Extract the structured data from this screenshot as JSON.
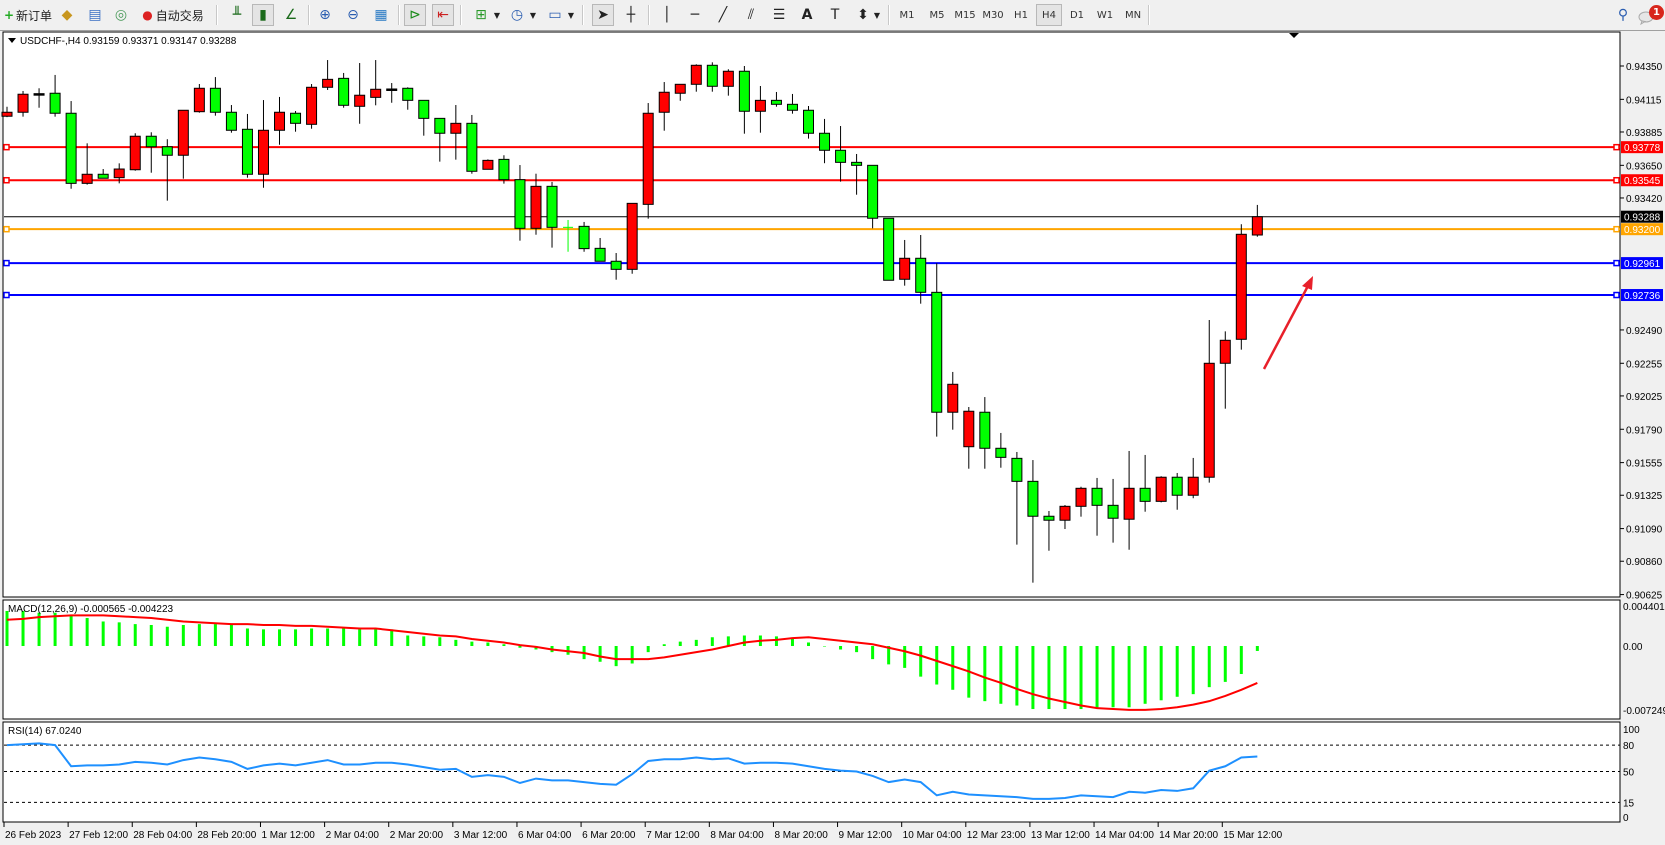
{
  "toolbar": {
    "new_order": "新订单",
    "auto_trading": "自动交易",
    "timeframes": [
      "M1",
      "M5",
      "M15",
      "M30",
      "H1",
      "H4",
      "D1",
      "W1",
      "MN"
    ],
    "active_timeframe": "H4",
    "notification_count": "1"
  },
  "chart": {
    "header": "USDCHF-,H4  0.93159 0.93371 0.93147 0.93288",
    "up_color": "#ff0000",
    "down_color": "#00ff00"
  },
  "chart_data": [
    {
      "type": "candlestick",
      "symbol": "USDCHF-",
      "timeframe": "H4",
      "ylim": [
        0.90625,
        0.9435
      ],
      "price_ticks": [
        "0.94350",
        "0.94115",
        "0.93885",
        "0.93650",
        "0.93420",
        "0.92490",
        "0.92255",
        "0.92025",
        "0.91790",
        "0.91555",
        "0.91325",
        "0.91090",
        "0.90860",
        "0.90625"
      ],
      "time_labels": [
        "26 Feb 2023",
        "27 Feb 12:00",
        "28 Feb 04:00",
        "28 Feb 20:00",
        "1 Mar 12:00",
        "2 Mar 04:00",
        "2 Mar 20:00",
        "3 Mar 12:00",
        "6 Mar 04:00",
        "6 Mar 20:00",
        "7 Mar 12:00",
        "8 Mar 04:00",
        "8 Mar 20:00",
        "9 Mar 12:00",
        "10 Mar 04:00",
        "12 Mar 23:00",
        "13 Mar 12:00",
        "14 Mar 04:00",
        "14 Mar 20:00",
        "15 Mar 12:00"
      ],
      "ohlc": [
        [
          0.93996,
          0.94063,
          0.9399,
          0.94024
        ],
        [
          0.94024,
          0.94174,
          0.93993,
          0.94151
        ],
        [
          0.94153,
          0.94193,
          0.94056,
          0.94155
        ],
        [
          0.94158,
          0.94287,
          0.93993,
          0.94017
        ],
        [
          0.94017,
          0.94103,
          0.93485,
          0.93523
        ],
        [
          0.93523,
          0.93805,
          0.93514,
          0.93587
        ],
        [
          0.93587,
          0.93624,
          0.93559,
          0.93559
        ],
        [
          0.93563,
          0.93664,
          0.93523,
          0.93624
        ],
        [
          0.93619,
          0.93876,
          0.93612,
          0.93855
        ],
        [
          0.93855,
          0.93883,
          0.93598,
          0.93781
        ],
        [
          0.93781,
          0.93834,
          0.93401,
          0.93721
        ],
        [
          0.93721,
          0.94038,
          0.93556,
          0.94038
        ],
        [
          0.94028,
          0.94223,
          0.94021,
          0.94193
        ],
        [
          0.94193,
          0.94272,
          0.94,
          0.94024
        ],
        [
          0.94024,
          0.94075,
          0.9388,
          0.93897
        ],
        [
          0.93904,
          0.94012,
          0.93563,
          0.93587
        ],
        [
          0.93587,
          0.9411,
          0.93492,
          0.93897
        ],
        [
          0.93897,
          0.94132,
          0.93795,
          0.94024
        ],
        [
          0.94017,
          0.94033,
          0.93887,
          0.93946
        ],
        [
          0.93939,
          0.94223,
          0.93908,
          0.942
        ],
        [
          0.942,
          0.94392,
          0.94181,
          0.94256
        ],
        [
          0.94263,
          0.94301,
          0.94056,
          0.94073
        ],
        [
          0.94066,
          0.94371,
          0.93943,
          0.94144
        ],
        [
          0.94129,
          0.94392,
          0.94073,
          0.94186
        ],
        [
          0.94186,
          0.9423,
          0.94091,
          0.94188
        ],
        [
          0.94193,
          0.942,
          0.94042,
          0.94108
        ],
        [
          0.94108,
          0.94108,
          0.93859,
          0.93981
        ],
        [
          0.93981,
          0.93981,
          0.93676,
          0.93876
        ],
        [
          0.93876,
          0.94075,
          0.9369,
          0.93946
        ],
        [
          0.93946,
          0.94005,
          0.93591,
          0.93608
        ],
        [
          0.93622,
          0.93692,
          0.93622,
          0.93685
        ],
        [
          0.93692,
          0.93721,
          0.93521,
          0.93549
        ],
        [
          0.93549,
          0.93652,
          0.93119,
          0.93206
        ],
        [
          0.93206,
          0.93591,
          0.93161,
          0.93502
        ],
        [
          0.93502,
          0.93533,
          0.9307,
          0.93213
        ],
        [
          0.93213,
          0.93265,
          0.93041,
          0.93213
        ],
        [
          0.9322,
          0.93251,
          0.93041,
          0.93063
        ],
        [
          0.93065,
          0.93138,
          0.92974,
          0.92974
        ],
        [
          0.92974,
          0.93032,
          0.92844,
          0.92917
        ],
        [
          0.92917,
          0.93382,
          0.92886,
          0.93382
        ],
        [
          0.93375,
          0.94089,
          0.93274,
          0.94017
        ],
        [
          0.94024,
          0.94237,
          0.93894,
          0.94165
        ],
        [
          0.94158,
          0.94221,
          0.94105,
          0.94221
        ],
        [
          0.94221,
          0.94362,
          0.94169,
          0.94355
        ],
        [
          0.94355,
          0.94376,
          0.94169,
          0.94207
        ],
        [
          0.94207,
          0.94327,
          0.94141,
          0.94313
        ],
        [
          0.94313,
          0.9435,
          0.93873,
          0.94031
        ],
        [
          0.94031,
          0.94209,
          0.9388,
          0.94108
        ],
        [
          0.94108,
          0.94167,
          0.94063,
          0.9408
        ],
        [
          0.9408,
          0.94153,
          0.94014,
          0.94038
        ],
        [
          0.94038,
          0.94068,
          0.93838,
          0.93876
        ],
        [
          0.93876,
          0.93977,
          0.93665,
          0.93756
        ],
        [
          0.93756,
          0.93927,
          0.93535,
          0.93671
        ],
        [
          0.93671,
          0.9373,
          0.93443,
          0.9365
        ],
        [
          0.9365,
          0.9365,
          0.93206,
          0.93277
        ],
        [
          0.93277,
          0.93277,
          0.9284,
          0.9284
        ],
        [
          0.92847,
          0.93124,
          0.92802,
          0.92995
        ],
        [
          0.92995,
          0.93159,
          0.92675,
          0.92755
        ],
        [
          0.92755,
          0.9296,
          0.91738,
          0.9191
        ],
        [
          0.9191,
          0.92194,
          0.91787,
          0.92107
        ],
        [
          0.91667,
          0.91947,
          0.91512,
          0.91917
        ],
        [
          0.9191,
          0.92017,
          0.91512,
          0.91656
        ],
        [
          0.91656,
          0.91764,
          0.91519,
          0.91592
        ],
        [
          0.91585,
          0.9163,
          0.90977,
          0.91423
        ],
        [
          0.91423,
          0.91573,
          0.90709,
          0.91177
        ],
        [
          0.91177,
          0.91214,
          0.90934,
          0.91149
        ],
        [
          0.91149,
          0.91256,
          0.91087,
          0.91247
        ],
        [
          0.91247,
          0.91385,
          0.91174,
          0.91374
        ],
        [
          0.91374,
          0.91447,
          0.9104,
          0.91254
        ],
        [
          0.91254,
          0.9144,
          0.90991,
          0.91163
        ],
        [
          0.91156,
          0.91637,
          0.90941,
          0.91374
        ],
        [
          0.91374,
          0.91609,
          0.91209,
          0.91282
        ],
        [
          0.91282,
          0.91459,
          0.91275,
          0.91452
        ],
        [
          0.91452,
          0.91482,
          0.91223,
          0.91325
        ],
        [
          0.91325,
          0.91588,
          0.91304,
          0.91452
        ],
        [
          0.91452,
          0.9256,
          0.91414,
          0.92255
        ],
        [
          0.92255,
          0.9248,
          0.91935,
          0.92417
        ],
        [
          0.92424,
          0.93235,
          0.92351,
          0.93164
        ],
        [
          0.93159,
          0.93371,
          0.93147,
          0.93288
        ]
      ],
      "levels": [
        {
          "price": "0.93778",
          "color": "#ff0000"
        },
        {
          "price": "0.93545",
          "color": "#ff0000"
        },
        {
          "price": "0.93288",
          "color": "#000000"
        },
        {
          "price": "0.93200",
          "color": "#ffa500"
        },
        {
          "price": "0.92961",
          "color": "#0000ff"
        },
        {
          "price": "0.92736",
          "color": "#0000ff"
        }
      ],
      "annotation": {
        "type": "arrow",
        "color": "#e8202a",
        "direction": "up-right"
      }
    },
    {
      "type": "macd",
      "label": "MACD(12,26,9) -0.000565 -0.004223",
      "ylim": [
        -0.007249,
        0.004401
      ],
      "ticks": [
        "0.004401",
        "0.00",
        "-0.007249"
      ],
      "histogram_color": "#00ff00",
      "signal_color": "#ff0000",
      "histogram": [
        0.004,
        0.004,
        0.0038,
        0.0038,
        0.0036,
        0.0032,
        0.0028,
        0.0027,
        0.0025,
        0.0024,
        0.0022,
        0.0024,
        0.0025,
        0.0025,
        0.0024,
        0.002,
        0.0019,
        0.0019,
        0.0019,
        0.002,
        0.002,
        0.002,
        0.0019,
        0.0019,
        0.0019,
        0.0012,
        0.0011,
        0.001,
        0.0007,
        0.0005,
        0.0004,
        0.0002,
        -0.0002,
        -0.0004,
        -0.0007,
        -0.001,
        -0.0015,
        -0.0018,
        -0.0023,
        -0.002,
        -0.0007,
        0.0002,
        0.0005,
        0.0007,
        0.001,
        0.0011,
        0.0012,
        0.0012,
        0.0011,
        0.0008,
        0.0004,
        0.0,
        -0.0004,
        -0.0007,
        -0.0015,
        -0.0021,
        -0.0025,
        -0.0035,
        -0.0044,
        -0.005,
        -0.0059,
        -0.0063,
        -0.0066,
        -0.0068,
        -0.0072,
        -0.0072,
        -0.0072,
        -0.0072,
        -0.0071,
        -0.007,
        -0.007,
        -0.0066,
        -0.0062,
        -0.0058,
        -0.0055,
        -0.0047,
        -0.0041,
        -0.0032,
        -0.000565
      ],
      "signal": [
        0.003,
        0.0031,
        0.0033,
        0.0034,
        0.0035,
        0.0035,
        0.0035,
        0.0034,
        0.0033,
        0.0032,
        0.003,
        0.0028,
        0.0027,
        0.0026,
        0.0025,
        0.0025,
        0.0024,
        0.0024,
        0.0023,
        0.0023,
        0.0022,
        0.0021,
        0.002,
        0.002,
        0.0018,
        0.0016,
        0.0014,
        0.0012,
        0.0011,
        0.0008,
        0.0006,
        0.0004,
        0.0001,
        -0.0001,
        -0.0004,
        -0.0006,
        -0.0008,
        -0.0012,
        -0.0015,
        -0.0015,
        -0.0015,
        -0.0013,
        -0.001,
        -0.0007,
        -0.0004,
        0.0,
        0.0004,
        0.0006,
        0.0007,
        0.0009,
        0.001,
        0.0008,
        0.0006,
        0.0004,
        0.0002,
        -0.0002,
        -0.0006,
        -0.0011,
        -0.0017,
        -0.0023,
        -0.0029,
        -0.0036,
        -0.0042,
        -0.0049,
        -0.0055,
        -0.006,
        -0.0064,
        -0.0068,
        -0.0071,
        -0.0072,
        -0.0073,
        -0.0073,
        -0.0072,
        -0.007,
        -0.0067,
        -0.0063,
        -0.0057,
        -0.005,
        -0.004223
      ]
    },
    {
      "type": "line",
      "label": "RSI(14) 67.0240",
      "ylim": [
        0,
        100
      ],
      "ticks": [
        "100",
        "80",
        "50",
        "15",
        "0"
      ],
      "levels": [
        80,
        50,
        15
      ],
      "color": "#1e90ff",
      "values": [
        80,
        81,
        82,
        80,
        56,
        57,
        57,
        58,
        61,
        60,
        58,
        63,
        66,
        64,
        61,
        53,
        57,
        59,
        57,
        60,
        63,
        58,
        58,
        60,
        60,
        58,
        55,
        52,
        53,
        44,
        46,
        44,
        37,
        42,
        40,
        40,
        38,
        36,
        35,
        47,
        62,
        64,
        64,
        66,
        64,
        65,
        59,
        60,
        60,
        59,
        56,
        53,
        51,
        50,
        45,
        38,
        41,
        38,
        23,
        27,
        24,
        23,
        22,
        21,
        19,
        19,
        20,
        23,
        22,
        21,
        27,
        26,
        29,
        28,
        31,
        51,
        56,
        66,
        67.024
      ]
    }
  ]
}
